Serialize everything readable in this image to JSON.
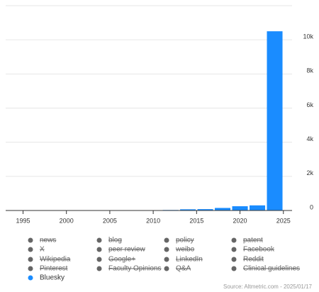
{
  "chart_data": {
    "type": "bar",
    "x": [
      2010,
      2012,
      2014,
      2016,
      2018,
      2020,
      2022,
      2024
    ],
    "series": [
      {
        "name": "Bluesky",
        "color": "#1a8cff",
        "values": [
          20,
          30,
          70,
          80,
          150,
          250,
          300,
          10500
        ]
      }
    ],
    "legend_hidden": [
      "news",
      "blog",
      "policy",
      "patent",
      "X",
      "peer review",
      "weibo",
      "Facebook",
      "Wikipedia",
      "Google+",
      "LinkedIn",
      "Reddit",
      "Pinterest",
      "Faculty Opinions",
      "Q&A",
      "Clinical guidelines"
    ],
    "hidden_color": "#666666",
    "xlim": [
      1993,
      2026
    ],
    "xticks": [
      1995,
      2000,
      2005,
      2010,
      2015,
      2020,
      2025
    ],
    "ylim": [
      0,
      12000
    ],
    "yticks": [
      0,
      {
        "value": 2000,
        "label": "2k"
      },
      {
        "value": 4000,
        "label": "4k"
      },
      {
        "value": 6000,
        "label": "6k"
      },
      {
        "value": 8000,
        "label": "8k"
      },
      {
        "value": 10000,
        "label": "10k"
      }
    ],
    "grid": true,
    "source": "Source: Altmetric.com - 2025/01/17"
  }
}
